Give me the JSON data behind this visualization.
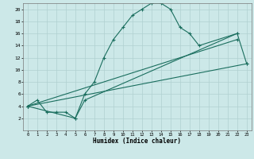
{
  "xlabel": "Humidex (Indice chaleur)",
  "bg_color": "#cce8e8",
  "grid_color": "#b0d0d0",
  "line_color": "#1a6e5e",
  "xlim": [
    -0.5,
    23.5
  ],
  "ylim": [
    0,
    21
  ],
  "xticks": [
    0,
    1,
    2,
    3,
    4,
    5,
    6,
    7,
    8,
    9,
    10,
    11,
    12,
    13,
    14,
    15,
    16,
    17,
    18,
    19,
    20,
    21,
    22,
    23
  ],
  "yticks": [
    2,
    4,
    6,
    8,
    10,
    12,
    14,
    16,
    18,
    20
  ],
  "line1_x": [
    0,
    1,
    2,
    3,
    4,
    5,
    6,
    7,
    8,
    9,
    10,
    11,
    12,
    13,
    14,
    15,
    16,
    17,
    18,
    22
  ],
  "line1_y": [
    4,
    5,
    3,
    3,
    3,
    2,
    6,
    8,
    12,
    15,
    17,
    19,
    20,
    21,
    21,
    20,
    17,
    16,
    14,
    16
  ],
  "line2_x": [
    0,
    5,
    6,
    22,
    23
  ],
  "line2_y": [
    4,
    2,
    5,
    16,
    11
  ],
  "line3_x": [
    0,
    22
  ],
  "line3_y": [
    4,
    15
  ],
  "line4_x": [
    0,
    23
  ],
  "line4_y": [
    4,
    11
  ]
}
